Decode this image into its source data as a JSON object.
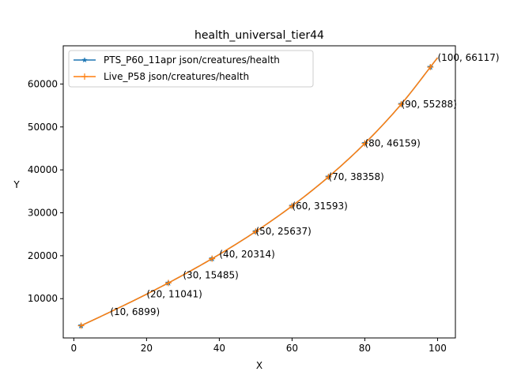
{
  "chart_data": {
    "type": "line",
    "title": "health_universal_tier44",
    "xlabel": "X",
    "ylabel": "Y",
    "xlim": [
      -2.9,
      104.9
    ],
    "ylim": [
      850,
      68900
    ],
    "x_ticks": [
      0,
      20,
      40,
      60,
      80,
      100
    ],
    "y_ticks": [
      10000,
      20000,
      30000,
      40000,
      50000,
      60000
    ],
    "x_tick_labels": [
      "0",
      "20",
      "40",
      "60",
      "80",
      "100"
    ],
    "y_tick_labels": [
      "10000",
      "20000",
      "30000",
      "40000",
      "50000",
      "60000"
    ],
    "grid": false,
    "legend_position": "top-left",
    "x": [
      2,
      10,
      20,
      30,
      40,
      50,
      60,
      70,
      80,
      90,
      100
    ],
    "series": [
      {
        "name": "PTS_P60_11apr json/creatures/health",
        "color": "#1f77b4",
        "marker": "star",
        "marker_x": [
          2,
          26,
          38,
          50,
          60,
          70,
          80,
          90,
          98
        ],
        "values": [
          3700,
          6899,
          11041,
          15485,
          20314,
          25637,
          31593,
          38358,
          46159,
          55288,
          66117
        ]
      },
      {
        "name": "Live_P58 json/creatures/health",
        "color": "#ff7f0e",
        "marker": "plus",
        "marker_x": [
          2,
          26,
          38,
          50,
          60,
          70,
          80,
          90,
          98
        ],
        "values": [
          3700,
          6899,
          11041,
          15485,
          20314,
          25637,
          31593,
          38358,
          46159,
          55288,
          66117
        ]
      }
    ],
    "annotations": [
      {
        "x": 10,
        "y": 6899,
        "text": "(10, 6899)"
      },
      {
        "x": 20,
        "y": 11041,
        "text": "(20, 11041)"
      },
      {
        "x": 30,
        "y": 15485,
        "text": "(30, 15485)"
      },
      {
        "x": 40,
        "y": 20314,
        "text": "(40, 20314)"
      },
      {
        "x": 50,
        "y": 25637,
        "text": "(50, 25637)"
      },
      {
        "x": 60,
        "y": 31593,
        "text": "(60, 31593)"
      },
      {
        "x": 70,
        "y": 38358,
        "text": "(70, 38358)"
      },
      {
        "x": 80,
        "y": 46159,
        "text": "(80, 46159)"
      },
      {
        "x": 90,
        "y": 55288,
        "text": "(90, 55288)"
      },
      {
        "x": 100,
        "y": 66117,
        "text": "(100, 66117)"
      }
    ]
  }
}
